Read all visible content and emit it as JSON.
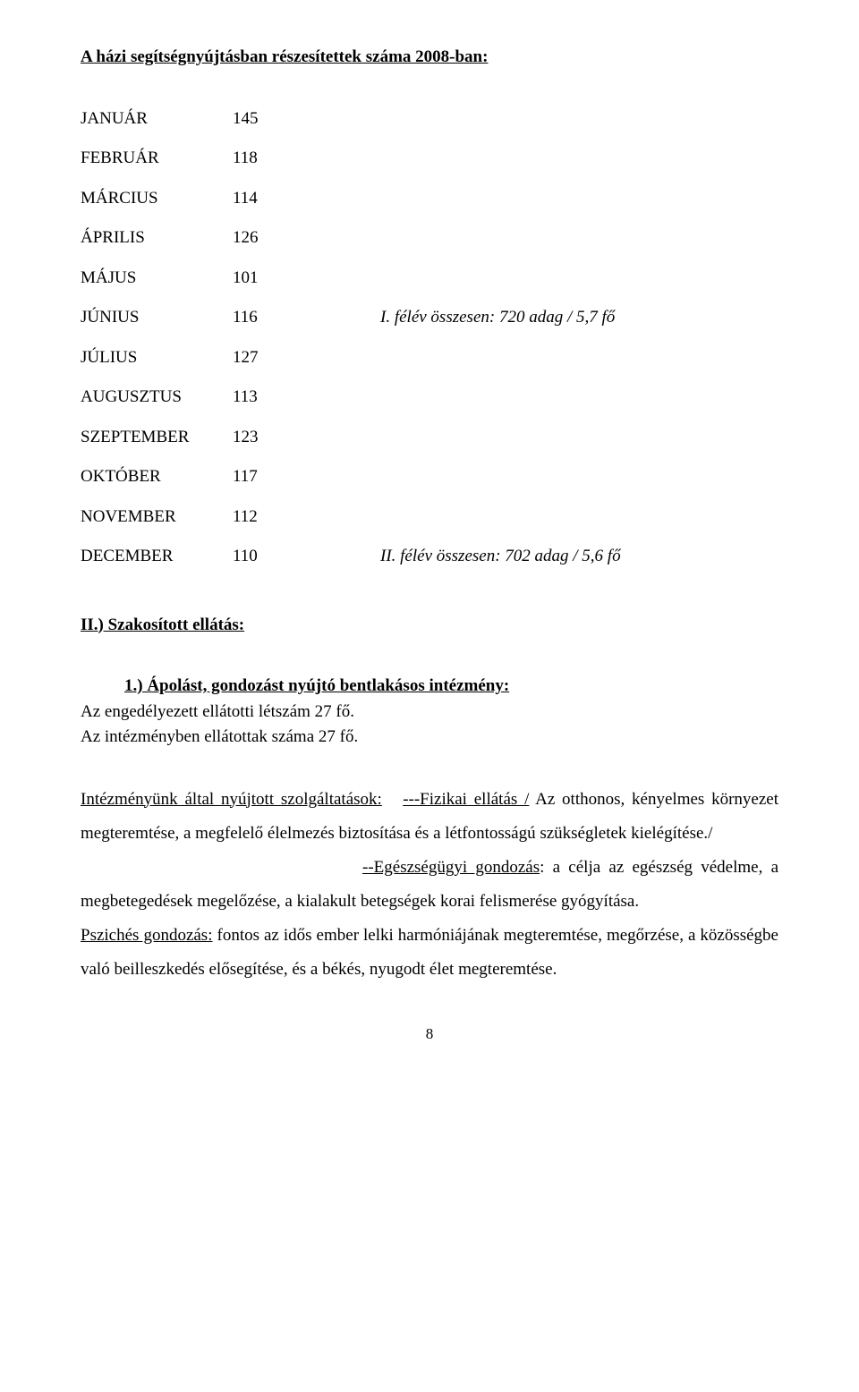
{
  "title": "A házi segítségnyújtásban részesítettek száma 2008-ban:",
  "rows": [
    {
      "month": "JANUÁR",
      "value": "145",
      "note": ""
    },
    {
      "month": "FEBRUÁR",
      "value": "118",
      "note": ""
    },
    {
      "month": "MÁRCIUS",
      "value": "114",
      "note": ""
    },
    {
      "month": "ÁPRILIS",
      "value": "126",
      "note": ""
    },
    {
      "month": "MÁJUS",
      "value": "101",
      "note": ""
    },
    {
      "month": "JÚNIUS",
      "value": "116",
      "note": "I. félév összesen: 720 adag / 5,7 fő"
    },
    {
      "month": "JÚLIUS",
      "value": "127",
      "note": ""
    },
    {
      "month": "AUGUSZTUS",
      "value": "113",
      "note": ""
    },
    {
      "month": "SZEPTEMBER",
      "value": "123",
      "note": ""
    },
    {
      "month": "OKTÓBER",
      "value": "117",
      "note": ""
    },
    {
      "month": "NOVEMBER",
      "value": "112",
      "note": ""
    },
    {
      "month": "DECEMBER",
      "value": "110",
      "note": "II. félév összesen: 702 adag / 5,6 fő"
    }
  ],
  "section_heading": "II.) Szakosított ellátás:",
  "item1_heading": "1.) Ápolást, gondozást nyújtó bentlakásos intézmény:",
  "item1_line1": "Az engedélyezett ellátotti létszám 27 fő.",
  "item1_line2": "Az intézményben ellátottak száma 27 fő.",
  "para1_lead": "Intézményünk által nyújtott szolgáltatások:",
  "para1_u1": "---Fizikai ellátás /",
  "para1_rest1": " Az otthonos, kényelmes környezet megteremtése, a megfelelő élelmezés biztosítása és a létfontosságú szükségletek kielégítése./",
  "para2_u": "--Egészségügyi gondozás",
  "para2_rest": ": a célja az egészség védelme, a megbetegedések megelőzése, a kialakult betegségek korai felismerése gyógyítása.",
  "para3_u": "Pszichés gondozás:",
  "para3_rest": " fontos az idős ember lelki harmóniájának megteremtése, megőrzése, a közösségbe való beilleszkedés elősegítése, és a békés, nyugodt élet megteremtése.",
  "page_number": "8"
}
